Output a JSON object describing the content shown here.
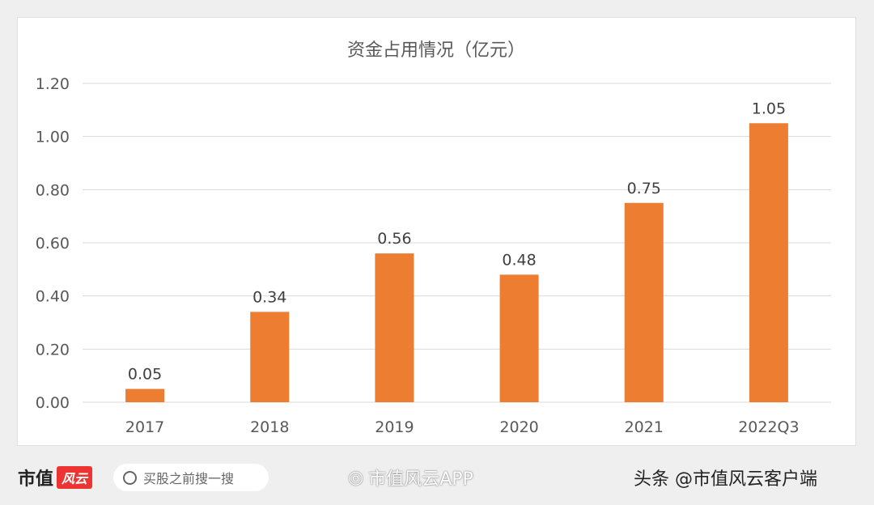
{
  "chart_data": {
    "type": "bar",
    "title": "资金占用情况（亿元）",
    "categories": [
      "2017",
      "2018",
      "2019",
      "2020",
      "2021",
      "2022Q3"
    ],
    "values": [
      0.05,
      0.34,
      0.56,
      0.48,
      0.75,
      1.05
    ],
    "data_labels": [
      "0.05",
      "0.34",
      "0.56",
      "0.48",
      "0.75",
      "1.05"
    ],
    "yticks": [
      "0.00",
      "0.20",
      "0.40",
      "0.60",
      "0.80",
      "1.00",
      "1.20"
    ],
    "ylim": [
      0,
      1.2
    ],
    "grid": true,
    "bar_color": "#ed7d31"
  },
  "footer": {
    "brand": "市值",
    "brand_logo": "风云",
    "search_placeholder": "买股之前搜一搜",
    "weibo": "市值风云APP",
    "toutiao": "头条 @市值风云客户端"
  }
}
